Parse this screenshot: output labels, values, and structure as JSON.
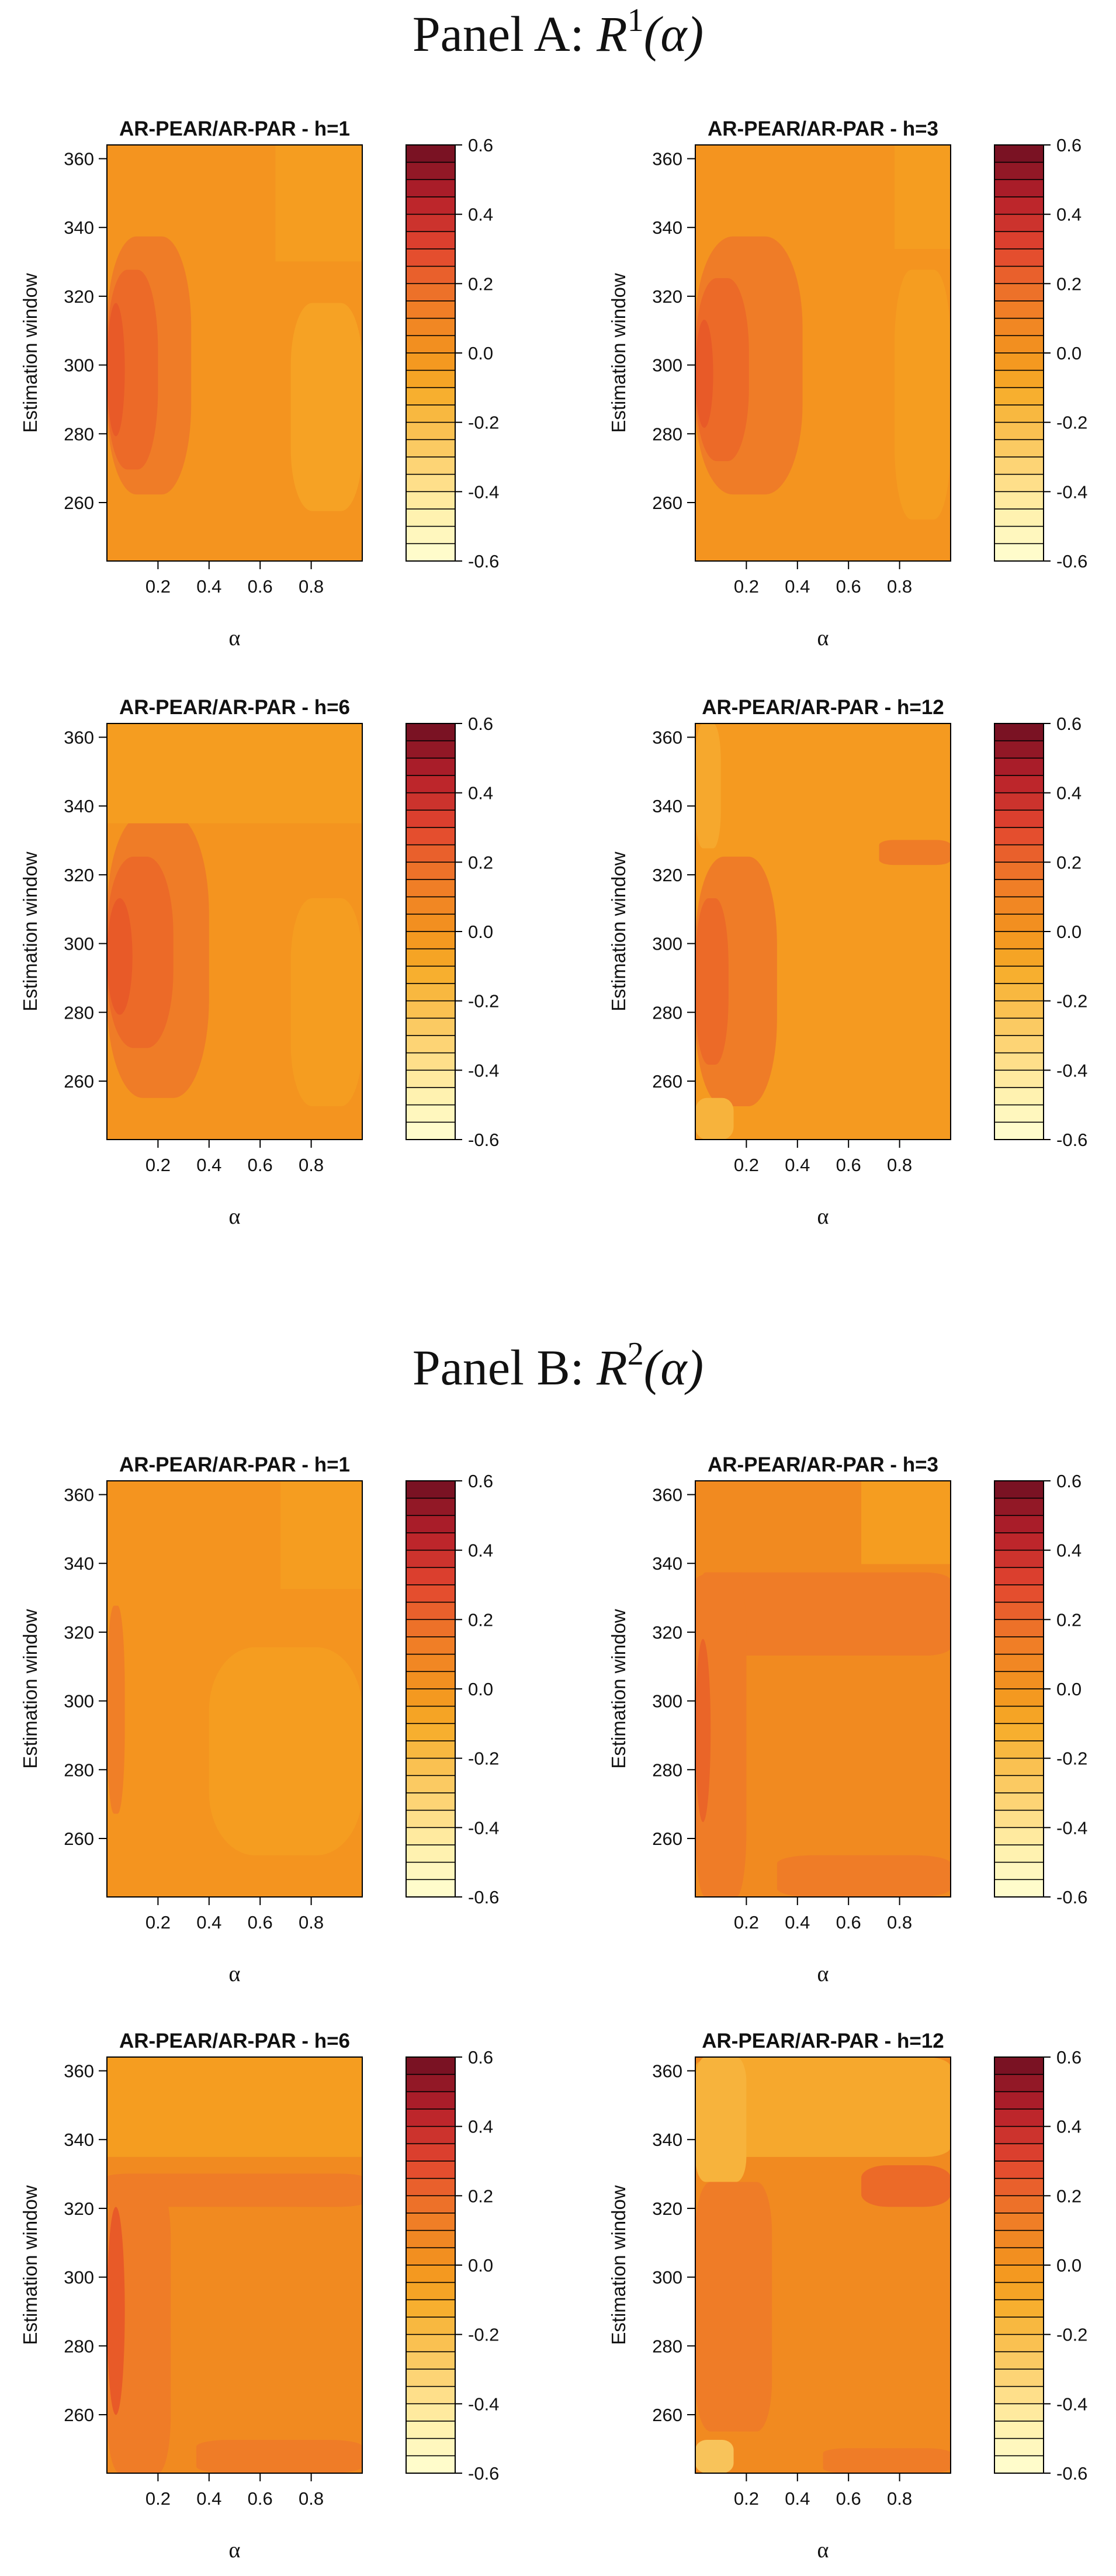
{
  "panels": [
    {
      "title_prefix": "Panel A:",
      "title_var": "R",
      "title_sup": "1",
      "title_arg": "(α)",
      "charts": [
        {
          "title": "AR-PEAR/AR-PAR - h=1",
          "variant": "A1"
        },
        {
          "title": "AR-PEAR/AR-PAR - h=3",
          "variant": "A3"
        },
        {
          "title": "AR-PEAR/AR-PAR - h=6",
          "variant": "A6"
        },
        {
          "title": "AR-PEAR/AR-PAR - h=12",
          "variant": "A12"
        }
      ]
    },
    {
      "title_prefix": "Panel B:",
      "title_var": "R",
      "title_sup": "2",
      "title_arg": "(α)",
      "charts": [
        {
          "title": "AR-PEAR/AR-PAR - h=1",
          "variant": "B1"
        },
        {
          "title": "AR-PEAR/AR-PAR - h=3",
          "variant": "B3"
        },
        {
          "title": "AR-PEAR/AR-PAR - h=6",
          "variant": "B6"
        },
        {
          "title": "AR-PEAR/AR-PAR - h=12",
          "variant": "B12"
        }
      ]
    }
  ],
  "chart_data": [
    {
      "type": "heatmap",
      "title": "AR-PEAR/AR-PAR - h=1",
      "panel": "A",
      "xlabel": "α",
      "ylabel": "Estimation window",
      "xlim": [
        0,
        1
      ],
      "ylim": [
        243,
        364
      ],
      "xticks": [
        "0.2",
        "0.4",
        "0.6",
        "0.8"
      ],
      "yticks": [
        "260",
        "280",
        "300",
        "320",
        "340",
        "360"
      ],
      "x_tick_values": [
        0.2,
        0.4,
        0.6,
        0.8
      ],
      "y_tick_values": [
        260,
        280,
        300,
        320,
        340,
        360
      ],
      "colorbar": {
        "min": -0.6,
        "max": 0.6,
        "step": 0.05,
        "ticks": [
          "0.6",
          "0.4",
          "0.2",
          "0.0",
          "-0.2",
          "-0.4",
          "-0.6"
        ]
      }
    },
    {
      "type": "heatmap",
      "title": "AR-PEAR/AR-PAR - h=3",
      "panel": "A",
      "xlabel": "α",
      "ylabel": "Estimation window",
      "xlim": [
        0,
        1
      ],
      "ylim": [
        243,
        364
      ],
      "xticks": [
        "0.2",
        "0.4",
        "0.6",
        "0.8"
      ],
      "yticks": [
        "260",
        "280",
        "300",
        "320",
        "340",
        "360"
      ],
      "x_tick_values": [
        0.2,
        0.4,
        0.6,
        0.8
      ],
      "y_tick_values": [
        260,
        280,
        300,
        320,
        340,
        360
      ],
      "colorbar": {
        "min": -0.6,
        "max": 0.6,
        "step": 0.05,
        "ticks": [
          "0.6",
          "0.4",
          "0.2",
          "0.0",
          "-0.2",
          "-0.4",
          "-0.6"
        ]
      }
    },
    {
      "type": "heatmap",
      "title": "AR-PEAR/AR-PAR - h=6",
      "panel": "A",
      "xlabel": "α",
      "ylabel": "Estimation window",
      "xlim": [
        0,
        1
      ],
      "ylim": [
        243,
        364
      ],
      "xticks": [
        "0.2",
        "0.4",
        "0.6",
        "0.8"
      ],
      "yticks": [
        "260",
        "280",
        "300",
        "320",
        "340",
        "360"
      ],
      "x_tick_values": [
        0.2,
        0.4,
        0.6,
        0.8
      ],
      "y_tick_values": [
        260,
        280,
        300,
        320,
        340,
        360
      ],
      "colorbar": {
        "min": -0.6,
        "max": 0.6,
        "step": 0.05,
        "ticks": [
          "0.6",
          "0.4",
          "0.2",
          "0.0",
          "-0.2",
          "-0.4",
          "-0.6"
        ]
      }
    },
    {
      "type": "heatmap",
      "title": "AR-PEAR/AR-PAR - h=12",
      "panel": "A",
      "xlabel": "α",
      "ylabel": "Estimation window",
      "xlim": [
        0,
        1
      ],
      "ylim": [
        243,
        364
      ],
      "xticks": [
        "0.2",
        "0.4",
        "0.6",
        "0.8"
      ],
      "yticks": [
        "260",
        "280",
        "300",
        "320",
        "340",
        "360"
      ],
      "x_tick_values": [
        0.2,
        0.4,
        0.6,
        0.8
      ],
      "y_tick_values": [
        260,
        280,
        300,
        320,
        340,
        360
      ],
      "colorbar": {
        "min": -0.6,
        "max": 0.6,
        "step": 0.05,
        "ticks": [
          "0.6",
          "0.4",
          "0.2",
          "0.0",
          "-0.2",
          "-0.4",
          "-0.6"
        ]
      }
    },
    {
      "type": "heatmap",
      "title": "AR-PEAR/AR-PAR - h=1",
      "panel": "B",
      "xlabel": "α",
      "ylabel": "Estimation window",
      "xlim": [
        0,
        1
      ],
      "ylim": [
        243,
        364
      ],
      "xticks": [
        "0.2",
        "0.4",
        "0.6",
        "0.8"
      ],
      "yticks": [
        "260",
        "280",
        "300",
        "320",
        "340",
        "360"
      ],
      "x_tick_values": [
        0.2,
        0.4,
        0.6,
        0.8
      ],
      "y_tick_values": [
        260,
        280,
        300,
        320,
        340,
        360
      ],
      "colorbar": {
        "min": -0.6,
        "max": 0.6,
        "step": 0.05,
        "ticks": [
          "0.6",
          "0.4",
          "0.2",
          "0.0",
          "-0.2",
          "-0.4",
          "-0.6"
        ]
      }
    },
    {
      "type": "heatmap",
      "title": "AR-PEAR/AR-PAR - h=3",
      "panel": "B",
      "xlabel": "α",
      "ylabel": "Estimation window",
      "xlim": [
        0,
        1
      ],
      "ylim": [
        243,
        364
      ],
      "xticks": [
        "0.2",
        "0.4",
        "0.6",
        "0.8"
      ],
      "yticks": [
        "260",
        "280",
        "300",
        "320",
        "340",
        "360"
      ],
      "x_tick_values": [
        0.2,
        0.4,
        0.6,
        0.8
      ],
      "y_tick_values": [
        260,
        280,
        300,
        320,
        340,
        360
      ],
      "colorbar": {
        "min": -0.6,
        "max": 0.6,
        "step": 0.05,
        "ticks": [
          "0.6",
          "0.4",
          "0.2",
          "0.0",
          "-0.2",
          "-0.4",
          "-0.6"
        ]
      }
    },
    {
      "type": "heatmap",
      "title": "AR-PEAR/AR-PAR - h=6",
      "panel": "B",
      "xlabel": "α",
      "ylabel": "Estimation window",
      "xlim": [
        0,
        1
      ],
      "ylim": [
        243,
        364
      ],
      "xticks": [
        "0.2",
        "0.4",
        "0.6",
        "0.8"
      ],
      "yticks": [
        "260",
        "280",
        "300",
        "320",
        "340",
        "360"
      ],
      "x_tick_values": [
        0.2,
        0.4,
        0.6,
        0.8
      ],
      "y_tick_values": [
        260,
        280,
        300,
        320,
        340,
        360
      ],
      "colorbar": {
        "min": -0.6,
        "max": 0.6,
        "step": 0.05,
        "ticks": [
          "0.6",
          "0.4",
          "0.2",
          "0.0",
          "-0.2",
          "-0.4",
          "-0.6"
        ]
      }
    },
    {
      "type": "heatmap",
      "title": "AR-PEAR/AR-PAR - h=12",
      "panel": "B",
      "xlabel": "α",
      "ylabel": "Estimation window",
      "xlim": [
        0,
        1
      ],
      "ylim": [
        243,
        364
      ],
      "xticks": [
        "0.2",
        "0.4",
        "0.6",
        "0.8"
      ],
      "yticks": [
        "260",
        "280",
        "300",
        "320",
        "340",
        "360"
      ],
      "x_tick_values": [
        0.2,
        0.4,
        0.6,
        0.8
      ],
      "y_tick_values": [
        260,
        280,
        300,
        320,
        340,
        360
      ],
      "colorbar": {
        "min": -0.6,
        "max": 0.6,
        "step": 0.05,
        "ticks": [
          "0.6",
          "0.4",
          "0.2",
          "0.0",
          "-0.2",
          "-0.4",
          "-0.6"
        ]
      }
    }
  ]
}
